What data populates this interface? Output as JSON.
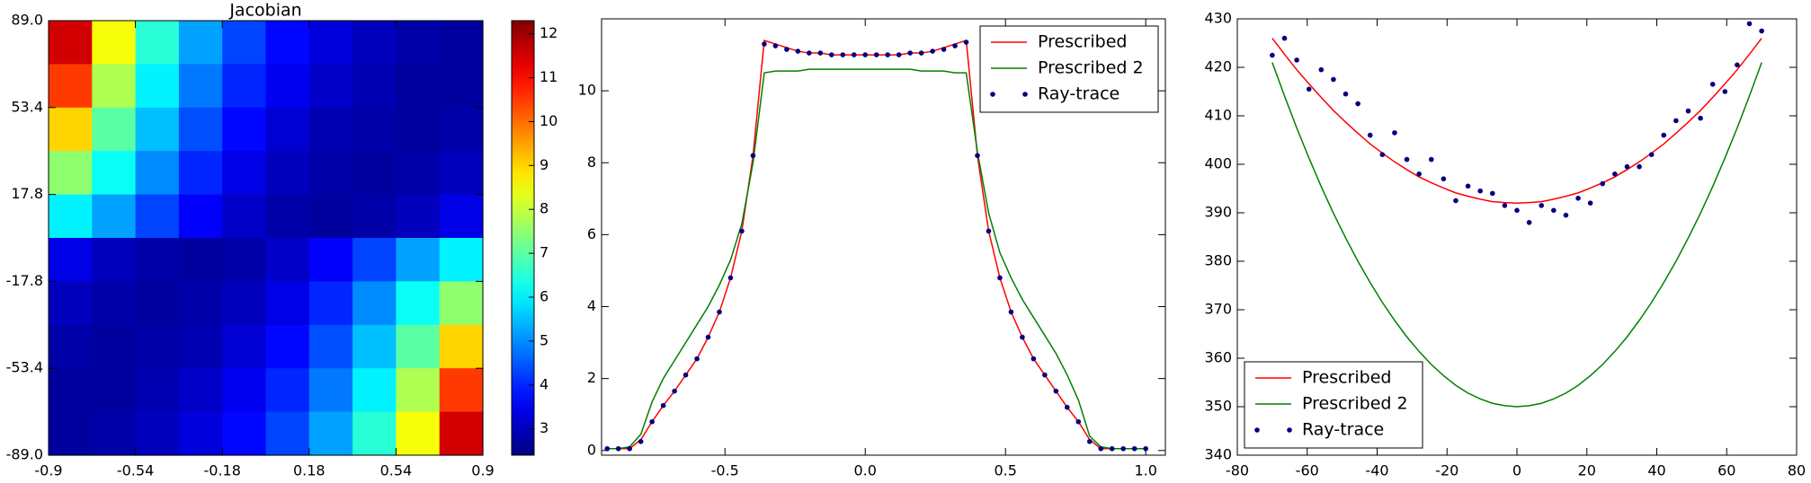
{
  "chart_data": [
    {
      "type": "heatmap",
      "title": "Jacobian",
      "xlim": [
        -0.9,
        0.9
      ],
      "ylim": [
        -89,
        89
      ],
      "xticks": [
        -0.9,
        -0.54,
        -0.18,
        0.18,
        0.54,
        0.9
      ],
      "yticks": [
        {
          "value": 89,
          "label": "89.0"
        },
        53.4,
        17.8,
        -17.8,
        -53.4,
        {
          "value": -89,
          "label": "-89.0"
        }
      ],
      "colormap": "jet",
      "clim": [
        2.4,
        12.3
      ],
      "cbar_ticks": [
        3,
        4,
        5,
        6,
        7,
        8,
        9,
        10,
        11,
        12
      ],
      "z": [
        [
          11.5,
          8.5,
          6.5,
          5.2,
          4.3,
          3.7,
          3.3,
          3.0,
          2.8,
          2.7
        ],
        [
          10.5,
          7.8,
          6.0,
          4.8,
          4.0,
          3.5,
          3.1,
          2.9,
          2.7,
          2.7
        ],
        [
          9.0,
          7.0,
          5.5,
          4.4,
          3.7,
          3.2,
          2.9,
          2.8,
          2.7,
          2.8
        ],
        [
          7.5,
          6.2,
          5.0,
          4.0,
          3.4,
          3.0,
          2.8,
          2.7,
          2.8,
          3.0
        ],
        [
          6.0,
          5.2,
          4.3,
          3.6,
          3.1,
          2.8,
          2.7,
          2.8,
          3.0,
          3.4
        ],
        [
          3.4,
          3.0,
          2.8,
          2.7,
          2.8,
          3.1,
          3.6,
          4.3,
          5.2,
          6.0
        ],
        [
          3.0,
          2.8,
          2.7,
          2.8,
          3.0,
          3.4,
          4.0,
          5.0,
          6.2,
          7.5
        ],
        [
          2.8,
          2.7,
          2.8,
          2.9,
          3.2,
          3.7,
          4.4,
          5.5,
          7.0,
          9.0
        ],
        [
          2.7,
          2.7,
          2.9,
          3.1,
          3.5,
          4.0,
          4.8,
          6.0,
          7.8,
          10.5
        ],
        [
          2.7,
          2.8,
          3.0,
          3.3,
          3.7,
          4.3,
          5.2,
          6.5,
          8.5,
          11.5
        ]
      ]
    },
    {
      "type": "line",
      "legend": "upper right",
      "xlim": [
        -0.94,
        1.07
      ],
      "ylim": [
        -0.13,
        12
      ],
      "xticks": [
        -0.5,
        {
          "value": 0,
          "label": "0.0"
        },
        0.5,
        {
          "value": 1,
          "label": "1.0"
        }
      ],
      "yticks": [
        0,
        2,
        4,
        6,
        8,
        10
      ],
      "x": [
        -0.92,
        -0.88,
        -0.84,
        -0.8,
        -0.76,
        -0.72,
        -0.68,
        -0.64,
        -0.6,
        -0.56,
        -0.52,
        -0.48,
        -0.44,
        -0.4,
        -0.36,
        -0.32,
        -0.28,
        -0.24,
        -0.2,
        -0.16,
        -0.12,
        -0.08,
        -0.04,
        0,
        0.04,
        0.08,
        0.12,
        0.16,
        0.2,
        0.24,
        0.28,
        0.32,
        0.36,
        0.4,
        0.44,
        0.48,
        0.52,
        0.56,
        0.6,
        0.64,
        0.68,
        0.72,
        0.76,
        0.8,
        0.84,
        0.88,
        0.92,
        0.96,
        1.0
      ],
      "series": [
        {
          "name": "Prescribed",
          "color": "#ff0000",
          "style": "line",
          "values": [
            0.05,
            0.05,
            0.05,
            0.3,
            0.8,
            1.25,
            1.65,
            2.1,
            2.55,
            3.15,
            3.85,
            4.8,
            6.1,
            8.2,
            11.4,
            11.3,
            11.2,
            11.1,
            11.05,
            11.05,
            11.0,
            11.0,
            11.0,
            11.0,
            11.0,
            11.0,
            11.0,
            11.05,
            11.05,
            11.1,
            11.2,
            11.3,
            11.4,
            8.2,
            6.1,
            4.8,
            3.85,
            3.15,
            2.55,
            2.1,
            1.65,
            1.2,
            0.8,
            0.3,
            0.05,
            0.05,
            0.05,
            0.05,
            0.05
          ]
        },
        {
          "name": "Prescribed 2",
          "color": "#008000",
          "style": "line",
          "values": [
            0.05,
            0.05,
            0.1,
            0.45,
            1.35,
            2.0,
            2.5,
            3.0,
            3.5,
            4.0,
            4.6,
            5.3,
            6.3,
            8.0,
            10.5,
            10.55,
            10.55,
            10.55,
            10.6,
            10.6,
            10.6,
            10.6,
            10.6,
            10.6,
            10.6,
            10.6,
            10.6,
            10.6,
            10.55,
            10.55,
            10.55,
            10.5,
            10.5,
            8.3,
            6.6,
            5.5,
            4.8,
            4.2,
            3.7,
            3.2,
            2.7,
            2.1,
            1.4,
            0.4,
            0.1,
            0.05,
            0.05,
            0.05,
            0.05
          ]
        },
        {
          "name": "Ray-trace",
          "color": "#000080",
          "style": "dots",
          "values": [
            0.05,
            0.05,
            0.05,
            0.25,
            0.8,
            1.25,
            1.65,
            2.1,
            2.55,
            3.15,
            3.85,
            4.8,
            6.1,
            8.2,
            11.3,
            11.25,
            11.15,
            11.1,
            11.05,
            11.05,
            11.0,
            11.0,
            11.0,
            11.0,
            11.0,
            11.0,
            11.0,
            11.05,
            11.05,
            11.1,
            11.15,
            11.25,
            11.35,
            8.2,
            6.1,
            4.8,
            3.85,
            3.15,
            2.55,
            2.1,
            1.65,
            1.2,
            0.8,
            0.25,
            0.05,
            0.05,
            0.05,
            0.05,
            0.05
          ]
        }
      ]
    },
    {
      "type": "line",
      "legend": "lower left",
      "xlim": [
        -80,
        80
      ],
      "ylim": [
        340,
        430
      ],
      "xticks": [
        -80,
        -60,
        -40,
        -20,
        0,
        20,
        40,
        60,
        80
      ],
      "yticks": [
        340,
        350,
        360,
        370,
        380,
        390,
        400,
        410,
        420,
        430
      ],
      "x": [
        -70,
        -66.5,
        -63,
        -59.5,
        -56,
        -52.5,
        -49,
        -45.5,
        -42,
        -38.5,
        -35,
        -31.5,
        -28,
        -24.5,
        -21,
        -17.5,
        -14,
        -10.5,
        -7,
        -3.5,
        0,
        3.5,
        7,
        10.5,
        14,
        17.5,
        21,
        24.5,
        28,
        31.5,
        35,
        38.5,
        42,
        45.5,
        49,
        52.5,
        56,
        59.5,
        63,
        66.5,
        70
      ],
      "series": [
        {
          "name": "Prescribed",
          "color": "#ff0000",
          "style": "line",
          "values": [
            426,
            422.7,
            419.5,
            416.6,
            413.8,
            411.1,
            408.7,
            406.4,
            404.2,
            402.3,
            400.5,
            398.9,
            397.4,
            396.2,
            395.1,
            394.1,
            393.4,
            392.8,
            392.3,
            392.1,
            392,
            392.1,
            392.3,
            392.8,
            393.4,
            394.1,
            395.1,
            396.2,
            397.4,
            398.9,
            400.5,
            402.3,
            404.2,
            406.4,
            408.7,
            411.1,
            413.8,
            416.6,
            419.5,
            422.7,
            426
          ]
        },
        {
          "name": "Prescribed 2",
          "color": "#008000",
          "style": "line",
          "values": [
            421,
            414.1,
            407.5,
            401.3,
            395.4,
            389.9,
            384.8,
            380.0,
            375.6,
            371.5,
            367.8,
            364.4,
            361.4,
            358.7,
            356.4,
            354.4,
            352.8,
            351.6,
            350.7,
            350.2,
            350,
            350.2,
            350.7,
            351.6,
            352.8,
            354.4,
            356.4,
            358.7,
            361.4,
            364.4,
            367.8,
            371.5,
            375.6,
            380.0,
            384.8,
            389.9,
            395.4,
            401.3,
            407.5,
            414.1,
            421
          ]
        },
        {
          "name": "Ray-trace",
          "color": "#000080",
          "style": "dots",
          "values": [
            422.5,
            426,
            421.5,
            415.5,
            419.5,
            417.5,
            414.5,
            412.5,
            406,
            402,
            406.5,
            401,
            398,
            401,
            397,
            392.5,
            395.5,
            394.5,
            394,
            391.5,
            390.5,
            388,
            391.5,
            390.5,
            389.5,
            393,
            392,
            396,
            398,
            399.5,
            399.5,
            402,
            406,
            409,
            411,
            409.5,
            416.5,
            415,
            420.5,
            429,
            427.5
          ]
        }
      ]
    }
  ]
}
